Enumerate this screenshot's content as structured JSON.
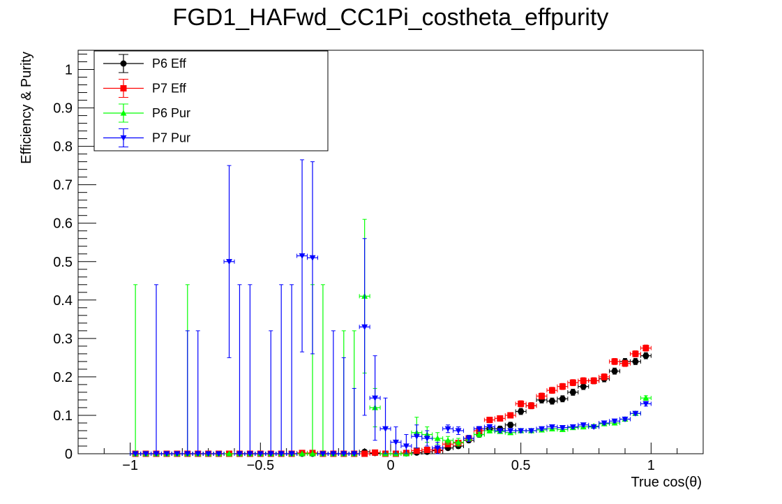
{
  "chart_data": {
    "type": "scatter",
    "title": "FGD1_HAFwd_CC1Pi_costheta_effpurity",
    "xlabel": "True cos(θ)",
    "ylabel": "Efficiency & Purity",
    "xlim": [
      -1.2,
      1.2
    ],
    "ylim": [
      0,
      1.05
    ],
    "xticks": [
      -1,
      -0.5,
      0,
      0.5,
      1
    ],
    "xtick_labels": [
      "−1",
      "−0.5",
      "0",
      "0.5",
      "1"
    ],
    "yticks": [
      0,
      0.1,
      0.2,
      0.3,
      0.4,
      0.5,
      0.6,
      0.7,
      0.8,
      0.9,
      1
    ],
    "ytick_labels": [
      "0",
      "0.1",
      "0.2",
      "0.3",
      "0.4",
      "0.5",
      "0.6",
      "0.7",
      "0.8",
      "0.9",
      "1"
    ],
    "grid": false,
    "legend_position": "top-left",
    "series": [
      {
        "name": "P6 Eff",
        "color": "#000000",
        "marker": "circle",
        "x": [
          -0.98,
          -0.94,
          -0.9,
          -0.86,
          -0.82,
          -0.78,
          -0.74,
          -0.7,
          -0.66,
          -0.62,
          -0.58,
          -0.54,
          -0.5,
          -0.46,
          -0.42,
          -0.38,
          -0.34,
          -0.3,
          -0.26,
          -0.22,
          -0.18,
          -0.14,
          -0.1,
          -0.06,
          -0.02,
          0.02,
          0.06,
          0.1,
          0.14,
          0.18,
          0.22,
          0.26,
          0.3,
          0.34,
          0.38,
          0.42,
          0.46,
          0.5,
          0.54,
          0.58,
          0.62,
          0.66,
          0.7,
          0.74,
          0.78,
          0.82,
          0.86,
          0.9,
          0.94,
          0.98
        ],
        "y": [
          0,
          0,
          0,
          0,
          0,
          0,
          0,
          0,
          0,
          0,
          0,
          0,
          0,
          0,
          0,
          0,
          0,
          0,
          0,
          0,
          0,
          0,
          0.005,
          0.002,
          0,
          0,
          0.001,
          0.003,
          0.005,
          0.008,
          0.015,
          0.02,
          0.035,
          0.05,
          0.065,
          0.065,
          0.075,
          0.11,
          0.125,
          0.14,
          0.137,
          0.143,
          0.16,
          0.175,
          0.19,
          0.195,
          0.215,
          0.24,
          0.24,
          0.255
        ],
        "err": [
          0,
          0,
          0,
          0,
          0,
          0,
          0,
          0,
          0,
          0,
          0,
          0,
          0,
          0,
          0,
          0,
          0,
          0,
          0,
          0,
          0,
          0,
          0.004,
          0.003,
          0,
          0,
          0.002,
          0.003,
          0.004,
          0.004,
          0.005,
          0.006,
          0.006,
          0.007,
          0.007,
          0.007,
          0.007,
          0.008,
          0.008,
          0.008,
          0.008,
          0.008,
          0.008,
          0.008,
          0.008,
          0.008,
          0.008,
          0.008,
          0.008,
          0.008
        ]
      },
      {
        "name": "P7 Eff",
        "color": "#ff0000",
        "marker": "square",
        "x": [
          -0.98,
          -0.94,
          -0.9,
          -0.86,
          -0.82,
          -0.78,
          -0.74,
          -0.7,
          -0.66,
          -0.62,
          -0.58,
          -0.54,
          -0.5,
          -0.46,
          -0.42,
          -0.38,
          -0.34,
          -0.3,
          -0.26,
          -0.22,
          -0.18,
          -0.14,
          -0.1,
          -0.06,
          -0.02,
          0.02,
          0.06,
          0.1,
          0.14,
          0.18,
          0.22,
          0.26,
          0.3,
          0.34,
          0.38,
          0.42,
          0.46,
          0.5,
          0.54,
          0.58,
          0.62,
          0.66,
          0.7,
          0.74,
          0.78,
          0.82,
          0.86,
          0.9,
          0.94,
          0.98
        ],
        "y": [
          0,
          0,
          0,
          0,
          0,
          0,
          0,
          0,
          0,
          0,
          0,
          0,
          0,
          0,
          0,
          0,
          0.002,
          0.002,
          0,
          0,
          0,
          0,
          0,
          0.003,
          0,
          0,
          0.002,
          0.008,
          0.01,
          0.01,
          0.025,
          0.028,
          0.04,
          0.06,
          0.088,
          0.092,
          0.1,
          0.13,
          0.125,
          0.15,
          0.165,
          0.175,
          0.185,
          0.19,
          0.19,
          0.2,
          0.24,
          0.235,
          0.26,
          0.275
        ],
        "err": [
          0,
          0,
          0,
          0,
          0,
          0,
          0,
          0,
          0,
          0,
          0,
          0,
          0,
          0,
          0,
          0,
          0.003,
          0.003,
          0,
          0,
          0,
          0,
          0,
          0.003,
          0,
          0,
          0.002,
          0.003,
          0.004,
          0.004,
          0.005,
          0.006,
          0.006,
          0.007,
          0.007,
          0.007,
          0.007,
          0.008,
          0.008,
          0.008,
          0.008,
          0.008,
          0.008,
          0.008,
          0.008,
          0.008,
          0.008,
          0.008,
          0.008,
          0.008
        ]
      },
      {
        "name": "P6 Pur",
        "color": "#00ff00",
        "marker": "triangle-up",
        "x": [
          -0.98,
          -0.94,
          -0.9,
          -0.86,
          -0.82,
          -0.78,
          -0.74,
          -0.7,
          -0.66,
          -0.62,
          -0.58,
          -0.54,
          -0.5,
          -0.46,
          -0.42,
          -0.38,
          -0.34,
          -0.3,
          -0.26,
          -0.22,
          -0.18,
          -0.14,
          -0.1,
          -0.06,
          -0.02,
          0.02,
          0.06,
          0.1,
          0.14,
          0.18,
          0.22,
          0.26,
          0.3,
          0.34,
          0.38,
          0.42,
          0.46,
          0.5,
          0.54,
          0.58,
          0.62,
          0.66,
          0.7,
          0.74,
          0.78,
          0.82,
          0.86,
          0.9,
          0.94,
          0.98
        ],
        "y": [
          0,
          0,
          0,
          0,
          0,
          0,
          0,
          0,
          0,
          0,
          0,
          0,
          0,
          0,
          0,
          0,
          0,
          0,
          0,
          0,
          0,
          0,
          0.41,
          0.12,
          0,
          0,
          0,
          0.055,
          0.05,
          0.04,
          0.035,
          0.03,
          0.04,
          0.05,
          0.06,
          0.058,
          0.055,
          0.06,
          0.06,
          0.062,
          0.065,
          0.063,
          0.068,
          0.07,
          0.072,
          0.078,
          0.08,
          0.09,
          0.105,
          0.145
        ],
        "err": [
          0,
          0,
          0,
          0,
          0,
          0,
          0,
          0,
          0,
          0,
          0,
          0,
          0,
          0,
          0,
          0,
          0,
          0,
          0,
          0,
          0,
          0,
          0.2,
          0.05,
          0,
          0,
          0,
          0.04,
          0.02,
          0.015,
          0.01,
          0.01,
          0.008,
          0.006,
          0.006,
          0.005,
          0.005,
          0.005,
          0.004,
          0.004,
          0.004,
          0.004,
          0.004,
          0.004,
          0.004,
          0.004,
          0.004,
          0.004,
          0.005,
          0.006
        ],
        "up_only": [
          0.44,
          0,
          0,
          0,
          0,
          0.44,
          0,
          0,
          0,
          0,
          0,
          0,
          0,
          0,
          0,
          0,
          0,
          0.44,
          0.44,
          0,
          0.32,
          0.32,
          0,
          0,
          0,
          0,
          0,
          0,
          0,
          0,
          0,
          0,
          0,
          0,
          0,
          0,
          0,
          0,
          0,
          0,
          0,
          0,
          0,
          0,
          0,
          0,
          0,
          0,
          0,
          0
        ]
      },
      {
        "name": "P7 Pur",
        "color": "#0000ff",
        "marker": "triangle-down",
        "x": [
          -0.98,
          -0.94,
          -0.9,
          -0.86,
          -0.82,
          -0.78,
          -0.74,
          -0.7,
          -0.66,
          -0.62,
          -0.58,
          -0.54,
          -0.5,
          -0.46,
          -0.42,
          -0.38,
          -0.34,
          -0.3,
          -0.26,
          -0.22,
          -0.18,
          -0.14,
          -0.1,
          -0.06,
          -0.02,
          0.02,
          0.06,
          0.1,
          0.14,
          0.18,
          0.22,
          0.26,
          0.3,
          0.34,
          0.38,
          0.42,
          0.46,
          0.5,
          0.54,
          0.58,
          0.62,
          0.66,
          0.7,
          0.74,
          0.78,
          0.82,
          0.86,
          0.9,
          0.94,
          0.98
        ],
        "y": [
          0,
          0,
          0,
          0,
          0,
          0,
          0,
          0,
          0,
          0.5,
          0,
          0,
          0,
          0,
          0,
          0,
          0.515,
          0.51,
          0,
          0,
          0,
          0,
          0.33,
          0.145,
          0.065,
          0.03,
          0.02,
          0.045,
          0.04,
          0.015,
          0.065,
          0.06,
          0.04,
          0.065,
          0.07,
          0.06,
          0.06,
          0.06,
          0.06,
          0.065,
          0.07,
          0.068,
          0.07,
          0.075,
          0.07,
          0.08,
          0.085,
          0.09,
          0.105,
          0.13
        ],
        "err": [
          0,
          0,
          0,
          0,
          0,
          0,
          0,
          0,
          0,
          0.25,
          0,
          0,
          0,
          0,
          0,
          0,
          0.25,
          0.25,
          0,
          0,
          0,
          0,
          0.23,
          0.11,
          0.08,
          0.04,
          0.03,
          0.03,
          0.02,
          0.015,
          0.01,
          0.01,
          0.008,
          0.006,
          0.006,
          0.005,
          0.005,
          0.005,
          0.004,
          0.004,
          0.004,
          0.004,
          0.004,
          0.004,
          0.004,
          0.004,
          0.004,
          0.004,
          0.005,
          0.006
        ],
        "up_only": [
          0,
          0,
          0.44,
          0,
          0,
          0.32,
          0.32,
          0,
          0,
          0,
          0.44,
          0.44,
          0,
          0.32,
          0.44,
          0.44,
          0,
          0,
          0,
          0.32,
          0.25,
          0.17,
          0,
          0,
          0,
          0,
          0,
          0,
          0,
          0,
          0,
          0,
          0,
          0,
          0,
          0,
          0,
          0,
          0,
          0,
          0,
          0,
          0,
          0,
          0,
          0,
          0,
          0,
          0,
          0
        ]
      }
    ],
    "bin_half_width": 0.02
  }
}
